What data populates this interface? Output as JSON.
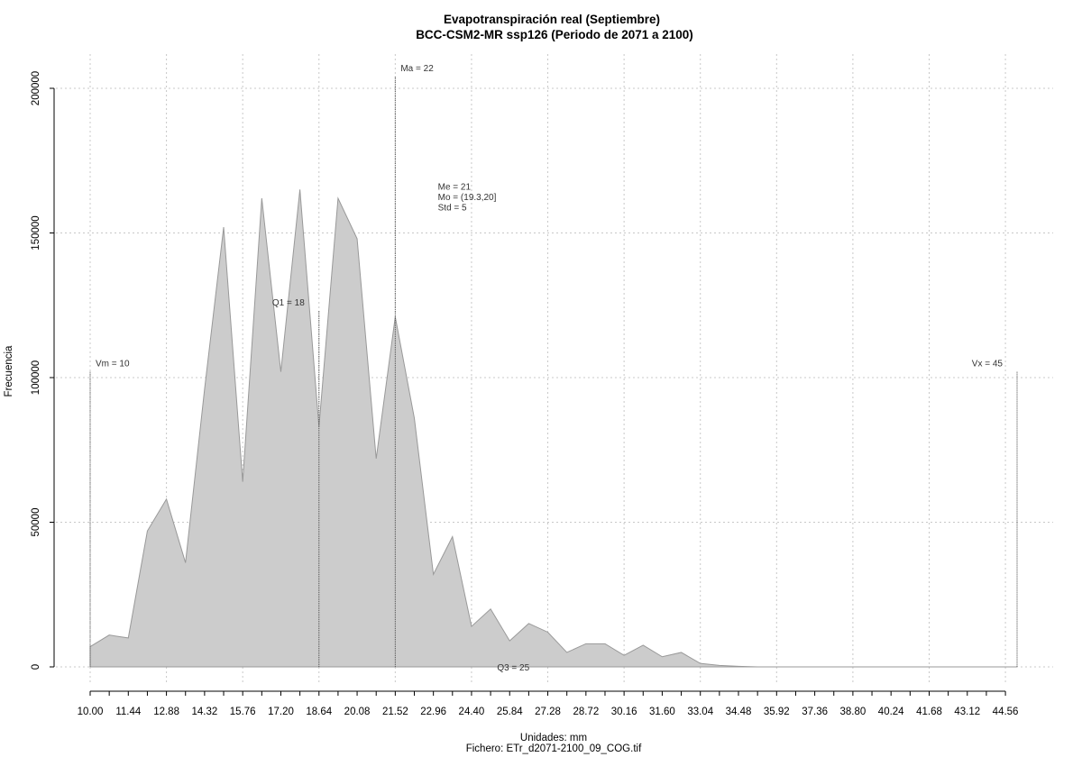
{
  "chart_data": {
    "type": "area",
    "title": "Evapotranspiración real (Septiembre)",
    "subtitle": "BCC-CSM2-MR ssp126 (Periodo de 2071 a 2100)",
    "xlabel": "Unidades: mm",
    "footer": "Fichero: ETr_d2071-2100_09_COG.tif",
    "ylabel": "Frecuencia",
    "xlim": [
      10.0,
      45.0
    ],
    "ylim": [
      0,
      200000
    ],
    "x_ticks": [
      "10.00",
      "11.44",
      "12.88",
      "14.32",
      "15.76",
      "17.20",
      "18.64",
      "20.08",
      "21.52",
      "22.96",
      "24.40",
      "25.84",
      "27.28",
      "28.72",
      "30.16",
      "31.60",
      "33.04",
      "34.48",
      "35.92",
      "37.36",
      "38.80",
      "40.24",
      "41.68",
      "43.12",
      "44.56"
    ],
    "y_ticks": [
      0,
      50000,
      100000,
      150000,
      200000
    ],
    "y_tick_labels": [
      "0",
      "50000",
      "100000",
      "150000",
      "200000"
    ],
    "grid": true,
    "fill_color": "#cccccc",
    "line_color": "#999999",
    "x": [
      10.0,
      10.72,
      11.44,
      12.16,
      12.88,
      13.6,
      14.32,
      15.04,
      15.76,
      16.48,
      17.2,
      17.92,
      18.64,
      19.36,
      20.08,
      20.8,
      21.52,
      22.24,
      22.96,
      23.68,
      24.4,
      25.12,
      25.84,
      26.56,
      27.28,
      28.0,
      28.72,
      29.44,
      30.16,
      30.88,
      31.6,
      32.32,
      33.04,
      33.76,
      34.48,
      35.2,
      35.92,
      36.64,
      37.36,
      38.08,
      38.8,
      39.52,
      40.24,
      40.96,
      41.68,
      42.4,
      43.12,
      43.84,
      44.56,
      45.0
    ],
    "values": [
      7000,
      11000,
      10000,
      47000,
      58000,
      36000,
      96000,
      152000,
      64000,
      162000,
      102000,
      165000,
      83000,
      162000,
      148000,
      72000,
      121000,
      86000,
      32000,
      45000,
      14000,
      20000,
      9000,
      15000,
      12000,
      5000,
      8000,
      8000,
      4000,
      7500,
      3500,
      5000,
      1200,
      500,
      200,
      0,
      0,
      0,
      0,
      0,
      0,
      0,
      0,
      0,
      0,
      0,
      0,
      0,
      0,
      0
    ],
    "markers": [
      {
        "label": "Vm = 10",
        "x": 10.0,
        "y": 102000,
        "anchor": "start"
      },
      {
        "label": "Q1 = 18",
        "x": 18.64,
        "y": 123000,
        "anchor": "end"
      },
      {
        "label": "Ma = 22",
        "x": 21.52,
        "y": 204000,
        "anchor": "start"
      },
      {
        "label": "Vx = 45",
        "x": 45.0,
        "y": 102000,
        "anchor": "end"
      }
    ],
    "stats_note": [
      "Me = 21",
      "Mo = (19.3,20]",
      "Std = 5"
    ],
    "stats_note_at": {
      "x": 22.96,
      "y": 165000
    },
    "q3_label": "Q3 = 25",
    "q3_label_at": {
      "x": 25.84,
      "y": 0
    }
  }
}
